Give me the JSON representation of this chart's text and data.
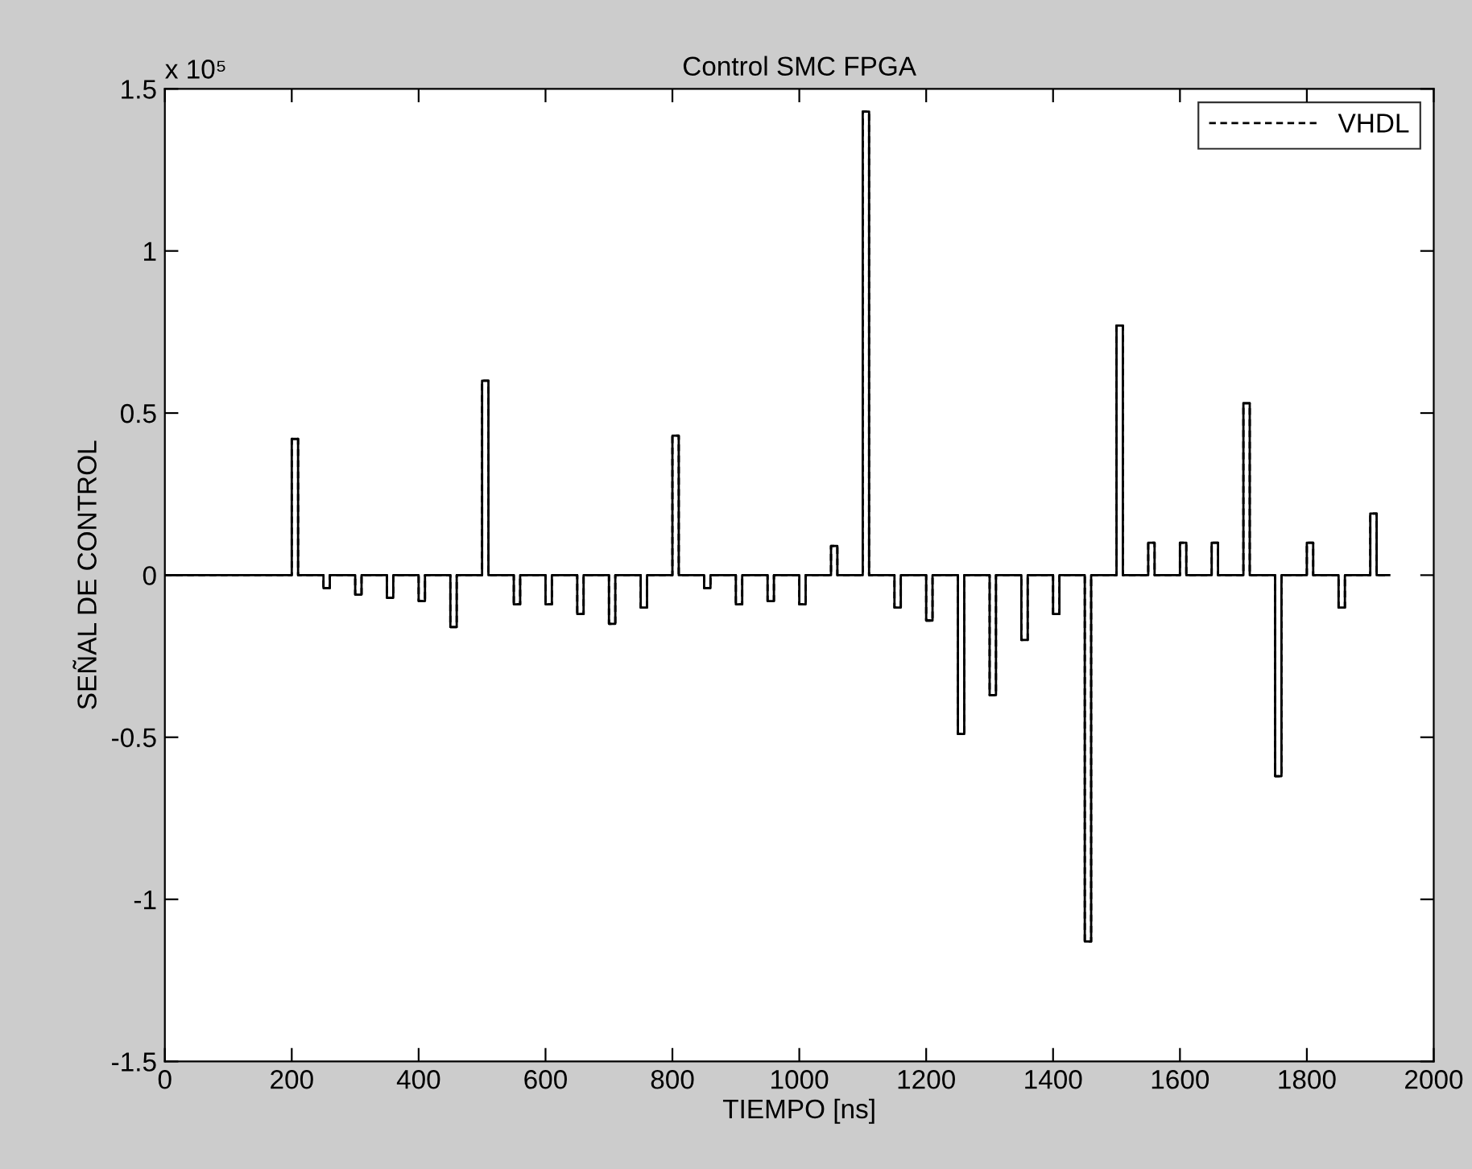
{
  "chart_data": {
    "type": "step",
    "title": "Control SMC FPGA",
    "xlabel": "TIEMPO [ns]",
    "ylabel": "SEÑAL DE CONTROL",
    "x": [
      0,
      200,
      210,
      250,
      260,
      300,
      310,
      350,
      360,
      400,
      410,
      450,
      460,
      500,
      510,
      550,
      560,
      600,
      610,
      650,
      660,
      700,
      710,
      750,
      760,
      800,
      810,
      850,
      860,
      900,
      910,
      950,
      960,
      1000,
      1010,
      1050,
      1060,
      1100,
      1110,
      1150,
      1160,
      1200,
      1210,
      1250,
      1260,
      1300,
      1310,
      1350,
      1360,
      1400,
      1410,
      1450,
      1460,
      1500,
      1510,
      1550,
      1560,
      1600,
      1610,
      1650,
      1660,
      1700,
      1710,
      1750,
      1760,
      1800,
      1810,
      1850,
      1860,
      1900,
      1910,
      1930
    ],
    "series": [
      {
        "color": "#000000",
        "line_style": "solid",
        "values": [
          0,
          0.42,
          0,
          -0.04,
          0,
          -0.06,
          0,
          -0.07,
          0,
          -0.08,
          0,
          -0.16,
          0,
          0.6,
          0,
          -0.09,
          0,
          -0.09,
          0,
          -0.12,
          0,
          -0.15,
          0,
          -0.1,
          0,
          0.43,
          0,
          -0.04,
          0,
          -0.09,
          0,
          -0.08,
          0,
          -0.09,
          0,
          0.09,
          0,
          1.43,
          0,
          -0.1,
          0,
          -0.14,
          0,
          -0.49,
          0,
          -0.37,
          0,
          -0.2,
          0,
          -0.12,
          0,
          -1.13,
          0,
          0.77,
          0,
          0.1,
          0,
          0.1,
          0,
          0.1,
          0,
          0.53,
          0,
          -0.62,
          0,
          0.1,
          0,
          -0.1,
          0,
          0.19,
          0,
          0
        ]
      },
      {
        "name": "VHDL",
        "color": "#000000",
        "line_style": "dashed",
        "values": [
          0,
          0.42,
          0,
          -0.04,
          0,
          -0.06,
          0,
          -0.07,
          0,
          -0.08,
          0,
          -0.16,
          0,
          0.6,
          0,
          -0.09,
          0,
          -0.09,
          0,
          -0.12,
          0,
          -0.15,
          0,
          -0.1,
          0,
          0.43,
          0,
          -0.04,
          0,
          -0.09,
          0,
          -0.08,
          0,
          -0.09,
          0,
          0.09,
          0,
          1.43,
          0,
          -0.1,
          0,
          -0.14,
          0,
          -0.49,
          0,
          -0.37,
          0,
          -0.2,
          0,
          -0.12,
          0,
          -1.13,
          0,
          0.77,
          0,
          0.1,
          0,
          0.1,
          0,
          0.1,
          0,
          0.53,
          0,
          -0.62,
          0,
          0.1,
          0,
          -0.1,
          0,
          0.19,
          0,
          0
        ]
      }
    ],
    "xlim": [
      0,
      2000
    ],
    "xticks": [
      0,
      200,
      400,
      600,
      800,
      1000,
      1200,
      1400,
      1600,
      1800,
      2000
    ],
    "ylim": [
      -1.5,
      1.5
    ],
    "yticks": [
      -1.5,
      -1,
      -0.5,
      0,
      0.5,
      1,
      1.5
    ],
    "annotations": [
      "x 10⁵"
    ],
    "legend": "top right",
    "grid": false,
    "marker": "none"
  }
}
